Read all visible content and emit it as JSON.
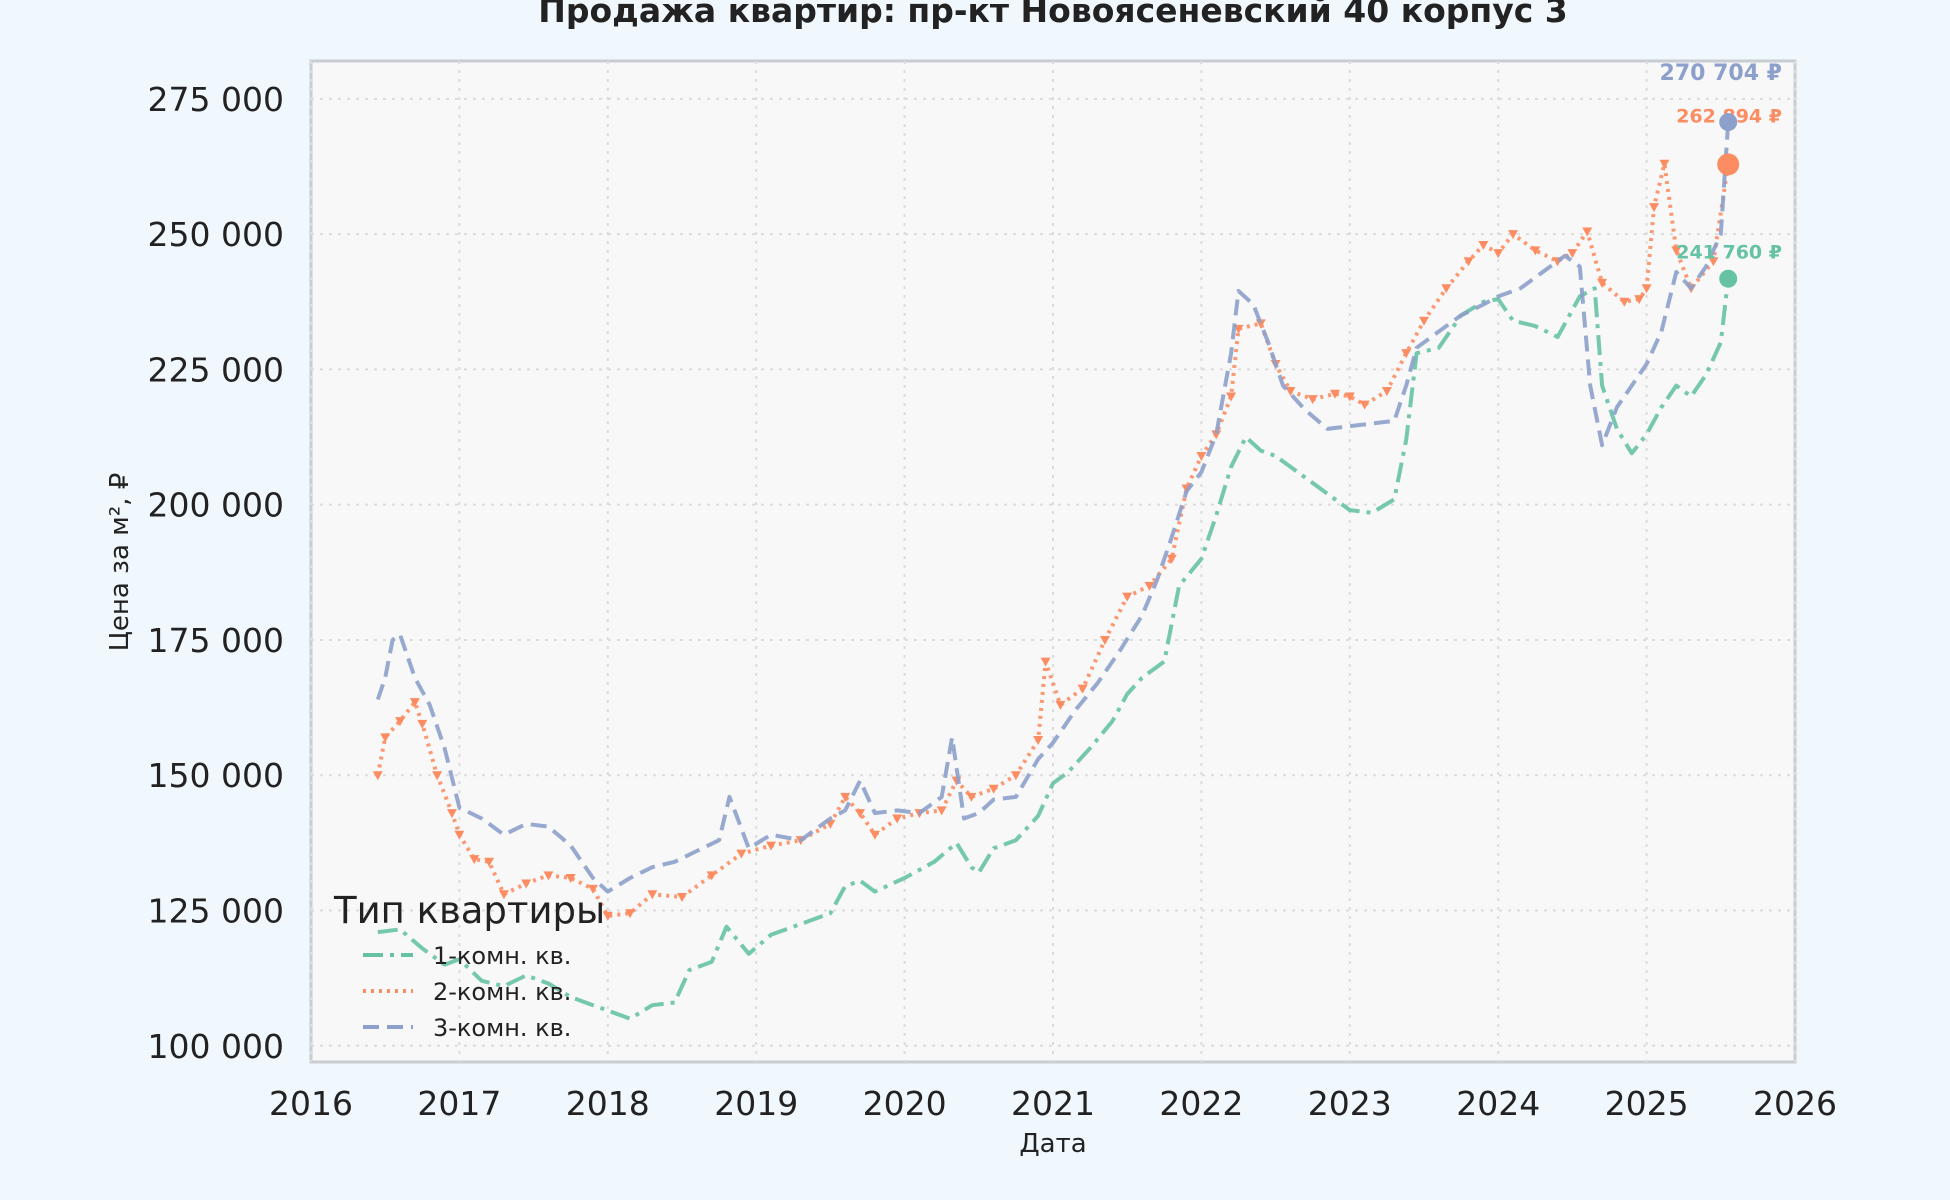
{
  "chart_data": {
    "type": "line",
    "title": "Продажа квартир: пр-кт Новоясеневский 40 корпус 3",
    "xlabel": "Дата",
    "ylabel": "Цена за м², ₽",
    "xlim": [
      2016,
      2026
    ],
    "ylim": [
      97000,
      282000
    ],
    "x_ticks": [
      "2016",
      "2017",
      "2018",
      "2019",
      "2020",
      "2021",
      "2022",
      "2023",
      "2024",
      "2025",
      "2026"
    ],
    "y_ticks": [
      "100 000",
      "125 000",
      "150 000",
      "175 000",
      "200 000",
      "225 000",
      "250 000",
      "275 000"
    ],
    "y_tick_values": [
      100000,
      125000,
      150000,
      175000,
      200000,
      225000,
      250000,
      275000
    ],
    "grid": true,
    "legend": {
      "title": "Тип квартиры",
      "position": "bottom-left"
    },
    "series": [
      {
        "name": "1-комн. кв.",
        "color": "#66c2a5",
        "style": "dashdot",
        "last_label": "241 760 ₽",
        "last_value": 241760,
        "points": [
          [
            2016.45,
            121000
          ],
          [
            2016.6,
            121500
          ],
          [
            2016.75,
            118000
          ],
          [
            2016.9,
            115000
          ],
          [
            2017.0,
            116000
          ],
          [
            2017.15,
            112000
          ],
          [
            2017.3,
            111000
          ],
          [
            2017.45,
            113000
          ],
          [
            2017.6,
            111500
          ],
          [
            2017.75,
            109000
          ],
          [
            2017.9,
            107500
          ],
          [
            2018.0,
            106500
          ],
          [
            2018.15,
            105000
          ],
          [
            2018.3,
            107500
          ],
          [
            2018.45,
            108000
          ],
          [
            2018.55,
            114000
          ],
          [
            2018.7,
            115500
          ],
          [
            2018.8,
            122000
          ],
          [
            2018.95,
            117000
          ],
          [
            2019.1,
            120500
          ],
          [
            2019.3,
            122500
          ],
          [
            2019.5,
            124500
          ],
          [
            2019.6,
            129500
          ],
          [
            2019.7,
            130500
          ],
          [
            2019.8,
            128500
          ],
          [
            2020.0,
            131000
          ],
          [
            2020.2,
            134000
          ],
          [
            2020.35,
            137500
          ],
          [
            2020.45,
            133000
          ],
          [
            2020.5,
            132000
          ],
          [
            2020.6,
            136500
          ],
          [
            2020.75,
            138000
          ],
          [
            2020.9,
            142500
          ],
          [
            2021.0,
            148500
          ],
          [
            2021.1,
            150500
          ],
          [
            2021.25,
            155000
          ],
          [
            2021.4,
            160000
          ],
          [
            2021.5,
            165000
          ],
          [
            2021.6,
            168000
          ],
          [
            2021.75,
            171000
          ],
          [
            2021.85,
            185000
          ],
          [
            2022.0,
            190000
          ],
          [
            2022.1,
            198000
          ],
          [
            2022.2,
            207000
          ],
          [
            2022.3,
            212500
          ],
          [
            2022.4,
            210000
          ],
          [
            2022.5,
            209000
          ],
          [
            2022.6,
            207000
          ],
          [
            2022.75,
            204000
          ],
          [
            2022.9,
            201000
          ],
          [
            2023.0,
            199000
          ],
          [
            2023.15,
            198500
          ],
          [
            2023.3,
            201000
          ],
          [
            2023.38,
            212000
          ],
          [
            2023.45,
            228000
          ],
          [
            2023.6,
            229000
          ],
          [
            2023.75,
            235000
          ],
          [
            2023.9,
            237500
          ],
          [
            2024.0,
            238000
          ],
          [
            2024.1,
            234000
          ],
          [
            2024.25,
            233000
          ],
          [
            2024.4,
            231000
          ],
          [
            2024.55,
            238500
          ],
          [
            2024.65,
            240000
          ],
          [
            2024.7,
            222000
          ],
          [
            2024.8,
            214000
          ],
          [
            2024.9,
            209500
          ],
          [
            2025.0,
            213000
          ],
          [
            2025.1,
            218000
          ],
          [
            2025.2,
            222000
          ],
          [
            2025.3,
            220000
          ],
          [
            2025.4,
            224000
          ],
          [
            2025.5,
            230000
          ],
          [
            2025.55,
            241760
          ]
        ]
      },
      {
        "name": "2-комн. кв.",
        "color": "#fc8d62",
        "style": "dotted-marker",
        "last_label": "262 894 ₽",
        "last_value": 262894,
        "points": [
          [
            2016.45,
            150000
          ],
          [
            2016.5,
            157000
          ],
          [
            2016.6,
            160000
          ],
          [
            2016.7,
            163500
          ],
          [
            2016.75,
            159500
          ],
          [
            2016.85,
            150000
          ],
          [
            2016.95,
            143000
          ],
          [
            2017.0,
            139000
          ],
          [
            2017.1,
            134500
          ],
          [
            2017.2,
            134000
          ],
          [
            2017.3,
            128000
          ],
          [
            2017.45,
            130000
          ],
          [
            2017.6,
            131500
          ],
          [
            2017.75,
            131000
          ],
          [
            2017.9,
            129000
          ],
          [
            2018.0,
            124000
          ],
          [
            2018.15,
            124500
          ],
          [
            2018.3,
            128000
          ],
          [
            2018.5,
            127500
          ],
          [
            2018.7,
            131500
          ],
          [
            2018.9,
            135500
          ],
          [
            2019.1,
            137000
          ],
          [
            2019.3,
            138000
          ],
          [
            2019.5,
            141000
          ],
          [
            2019.6,
            146000
          ],
          [
            2019.7,
            143000
          ],
          [
            2019.8,
            139000
          ],
          [
            2019.95,
            142000
          ],
          [
            2020.1,
            143000
          ],
          [
            2020.25,
            143500
          ],
          [
            2020.35,
            149000
          ],
          [
            2020.45,
            146000
          ],
          [
            2020.6,
            147500
          ],
          [
            2020.75,
            150000
          ],
          [
            2020.9,
            156500
          ],
          [
            2020.95,
            171000
          ],
          [
            2021.05,
            163000
          ],
          [
            2021.2,
            166000
          ],
          [
            2021.35,
            175000
          ],
          [
            2021.5,
            183000
          ],
          [
            2021.65,
            185000
          ],
          [
            2021.8,
            190000
          ],
          [
            2021.9,
            203000
          ],
          [
            2022.0,
            209000
          ],
          [
            2022.1,
            213000
          ],
          [
            2022.2,
            220000
          ],
          [
            2022.25,
            232500
          ],
          [
            2022.4,
            233500
          ],
          [
            2022.5,
            226000
          ],
          [
            2022.6,
            221000
          ],
          [
            2022.75,
            219500
          ],
          [
            2022.9,
            220500
          ],
          [
            2023.0,
            220000
          ],
          [
            2023.1,
            218500
          ],
          [
            2023.25,
            221000
          ],
          [
            2023.38,
            228000
          ],
          [
            2023.5,
            234000
          ],
          [
            2023.65,
            240000
          ],
          [
            2023.8,
            245000
          ],
          [
            2023.9,
            248000
          ],
          [
            2024.0,
            246500
          ],
          [
            2024.1,
            250000
          ],
          [
            2024.25,
            247000
          ],
          [
            2024.4,
            245000
          ],
          [
            2024.5,
            246500
          ],
          [
            2024.6,
            250500
          ],
          [
            2024.7,
            241000
          ],
          [
            2024.85,
            237500
          ],
          [
            2024.95,
            238000
          ],
          [
            2025.0,
            240000
          ],
          [
            2025.05,
            255000
          ],
          [
            2025.12,
            263000
          ],
          [
            2025.2,
            247000
          ],
          [
            2025.3,
            240000
          ],
          [
            2025.45,
            245000
          ],
          [
            2025.55,
            262894
          ]
        ]
      },
      {
        "name": "3-комн. кв.",
        "color": "#8da0cb",
        "style": "dashed",
        "last_label": "270 704 ₽",
        "last_value": 270704,
        "points": [
          [
            2016.45,
            164000
          ],
          [
            2016.5,
            168000
          ],
          [
            2016.55,
            175000
          ],
          [
            2016.6,
            176000
          ],
          [
            2016.7,
            168000
          ],
          [
            2016.8,
            163000
          ],
          [
            2016.9,
            155000
          ],
          [
            2017.0,
            144000
          ],
          [
            2017.15,
            142000
          ],
          [
            2017.3,
            139000
          ],
          [
            2017.45,
            141000
          ],
          [
            2017.6,
            140500
          ],
          [
            2017.75,
            137000
          ],
          [
            2017.9,
            131000
          ],
          [
            2018.0,
            128500
          ],
          [
            2018.15,
            131000
          ],
          [
            2018.3,
            133000
          ],
          [
            2018.45,
            134000
          ],
          [
            2018.6,
            136000
          ],
          [
            2018.75,
            138000
          ],
          [
            2018.82,
            146000
          ],
          [
            2018.95,
            136500
          ],
          [
            2019.1,
            139000
          ],
          [
            2019.3,
            138000
          ],
          [
            2019.5,
            142000
          ],
          [
            2019.6,
            143500
          ],
          [
            2019.7,
            149000
          ],
          [
            2019.8,
            143000
          ],
          [
            2019.95,
            143500
          ],
          [
            2020.1,
            143000
          ],
          [
            2020.25,
            146000
          ],
          [
            2020.32,
            157000
          ],
          [
            2020.4,
            142000
          ],
          [
            2020.5,
            143000
          ],
          [
            2020.6,
            145500
          ],
          [
            2020.75,
            146000
          ],
          [
            2020.9,
            153000
          ],
          [
            2021.0,
            156000
          ],
          [
            2021.15,
            162000
          ],
          [
            2021.3,
            167000
          ],
          [
            2021.45,
            173000
          ],
          [
            2021.6,
            179500
          ],
          [
            2021.7,
            186000
          ],
          [
            2021.8,
            194000
          ],
          [
            2021.9,
            202500
          ],
          [
            2022.0,
            206000
          ],
          [
            2022.1,
            213000
          ],
          [
            2022.2,
            228000
          ],
          [
            2022.25,
            239500
          ],
          [
            2022.35,
            237000
          ],
          [
            2022.45,
            230000
          ],
          [
            2022.55,
            222000
          ],
          [
            2022.7,
            217500
          ],
          [
            2022.85,
            214000
          ],
          [
            2023.0,
            214500
          ],
          [
            2023.15,
            215000
          ],
          [
            2023.3,
            215500
          ],
          [
            2023.38,
            222000
          ],
          [
            2023.45,
            229000
          ],
          [
            2023.6,
            232000
          ],
          [
            2023.75,
            235000
          ],
          [
            2023.9,
            237000
          ],
          [
            2024.0,
            238500
          ],
          [
            2024.15,
            240000
          ],
          [
            2024.3,
            243000
          ],
          [
            2024.45,
            246000
          ],
          [
            2024.55,
            244000
          ],
          [
            2024.62,
            222000
          ],
          [
            2024.7,
            211000
          ],
          [
            2024.8,
            218000
          ],
          [
            2024.9,
            222000
          ],
          [
            2025.0,
            226000
          ],
          [
            2025.1,
            232000
          ],
          [
            2025.2,
            243000
          ],
          [
            2025.3,
            240000
          ],
          [
            2025.4,
            244000
          ],
          [
            2025.5,
            250000
          ],
          [
            2025.55,
            270704
          ]
        ]
      }
    ]
  }
}
